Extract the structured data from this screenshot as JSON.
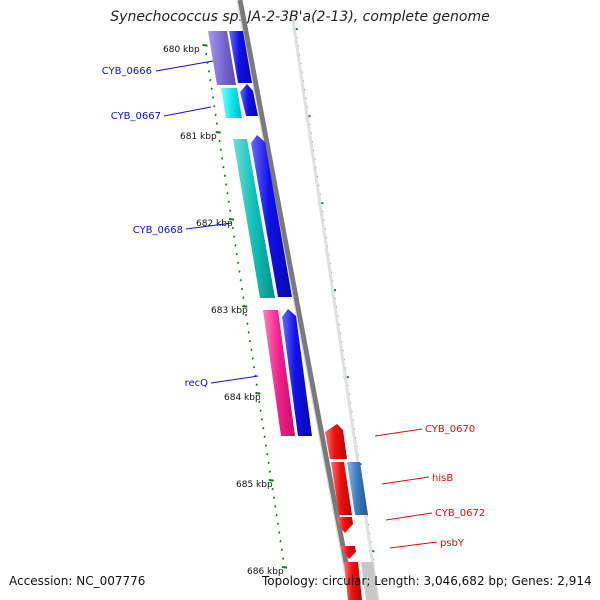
{
  "title": "Synechococcus sp. JA-2-3B'a(2-13), complete genome",
  "footer": {
    "accession": "Accession: NC_007776",
    "summary": "Topology: circular; Length: 3,046,682 bp; Genes: 2,914"
  },
  "ticks": [
    "680 kbp",
    "681 kbp",
    "682 kbp",
    "683 kbp",
    "684 kbp",
    "685 kbp",
    "686 kbp"
  ],
  "genes_left": [
    "CYB_0666",
    "CYB_0667",
    "CYB_0668",
    "recQ"
  ],
  "genes_right": [
    "CYB_0670",
    "hisB",
    "CYB_0672",
    "psbY"
  ],
  "colors": {
    "cyb0666": "#7a6ad0",
    "cyb0667": "#10e8f0",
    "cyb0668": "#10c0b8",
    "recq": "#f0208a",
    "blue_arrow": "#1010e8",
    "red_gene": "#f01010",
    "hisb_inner": "#3a78c0",
    "left_label": "#1010c8",
    "right_label": "#d81010",
    "tick_mark": "#1a7a1a",
    "backbone": "#7a7a7a"
  }
}
